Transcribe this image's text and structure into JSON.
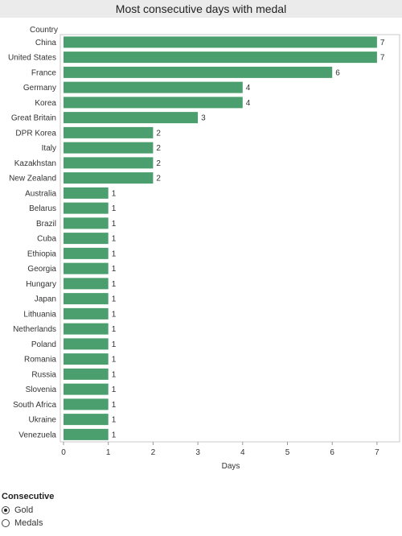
{
  "chart_data": {
    "type": "bar",
    "orientation": "horizontal",
    "title": "Most consecutive days with medal",
    "row_header": "Country",
    "xlabel": "Days",
    "xlim": [
      0,
      7.5
    ],
    "xticks": [
      0,
      1,
      2,
      3,
      4,
      5,
      6,
      7
    ],
    "bar_color": "#4b9f6e",
    "categories": [
      "China",
      "United States",
      "France",
      "Germany",
      "Korea",
      "Great Britain",
      "DPR Korea",
      "Italy",
      "Kazakhstan",
      "New Zealand",
      "Australia",
      "Belarus",
      "Brazil",
      "Cuba",
      "Ethiopia",
      "Georgia",
      "Hungary",
      "Japan",
      "Lithuania",
      "Netherlands",
      "Poland",
      "Romania",
      "Russia",
      "Slovenia",
      "South Africa",
      "Ukraine",
      "Venezuela"
    ],
    "values": [
      7,
      7,
      6,
      4,
      4,
      3,
      2,
      2,
      2,
      2,
      1,
      1,
      1,
      1,
      1,
      1,
      1,
      1,
      1,
      1,
      1,
      1,
      1,
      1,
      1,
      1,
      1
    ],
    "grid": false,
    "data_labels": true
  },
  "legend": {
    "title": "Consecutive",
    "options": [
      "Gold",
      "Medals"
    ],
    "selected": "Gold"
  }
}
